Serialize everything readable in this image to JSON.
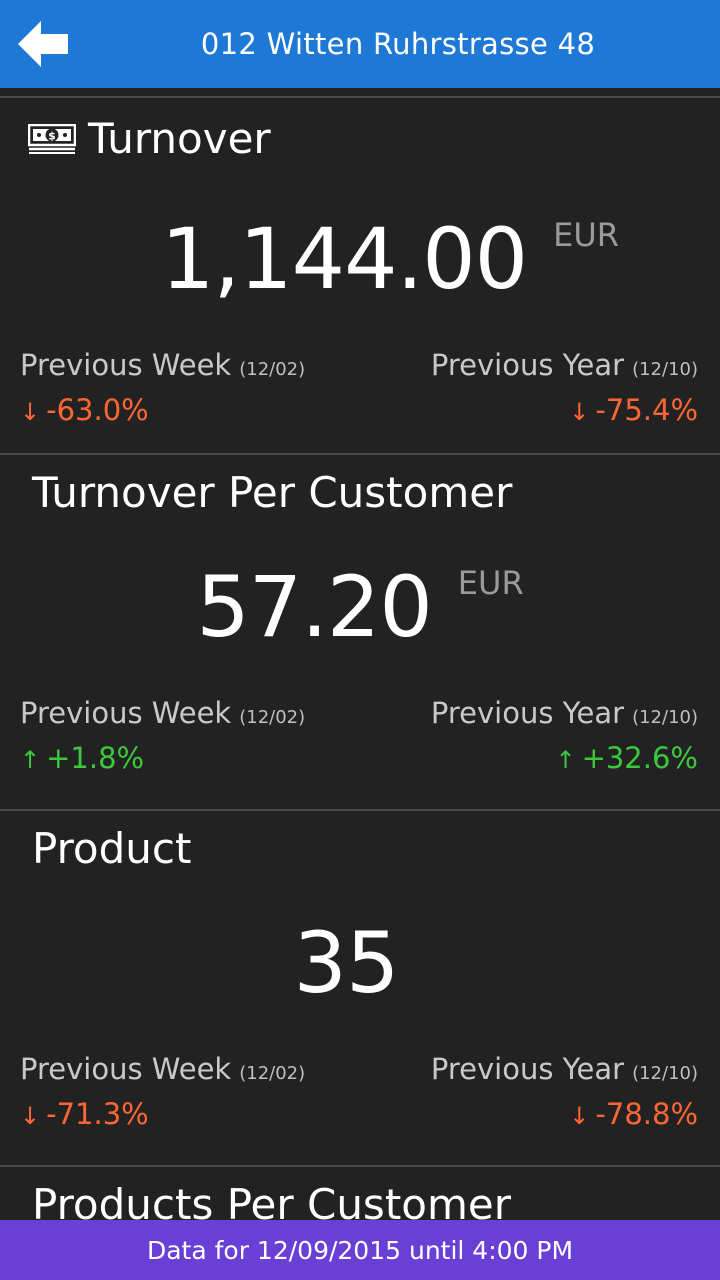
{
  "header": {
    "title": "012 Witten Ruhrstrasse 48",
    "back_icon": "arrow-left-icon"
  },
  "colors": {
    "header_bg": "#1e78d6",
    "footer_bg": "#6a3fd6",
    "negative": "#ff6633",
    "positive": "#3cc83c",
    "background": "#222222"
  },
  "cards": [
    {
      "title": "Turnover",
      "icon": "money-icon",
      "value": "1,144.00",
      "unit": "EUR",
      "prev_week_label": "Previous Week",
      "prev_week_date": "(12/02)",
      "prev_week_change": "-63.0%",
      "prev_week_direction": "down",
      "prev_year_label": "Previous Year",
      "prev_year_date": "(12/10)",
      "prev_year_change": "-75.4%",
      "prev_year_direction": "down"
    },
    {
      "title": "Turnover Per Customer",
      "value": "57.20",
      "unit": "EUR",
      "prev_week_label": "Previous Week",
      "prev_week_date": "(12/02)",
      "prev_week_change": "+1.8%",
      "prev_week_direction": "up",
      "prev_year_label": "Previous Year",
      "prev_year_date": "(12/10)",
      "prev_year_change": "+32.6%",
      "prev_year_direction": "up"
    },
    {
      "title": "Product",
      "value": "35",
      "unit": "",
      "prev_week_label": "Previous Week",
      "prev_week_date": "(12/02)",
      "prev_week_change": "-71.3%",
      "prev_week_direction": "down",
      "prev_year_label": "Previous Year",
      "prev_year_date": "(12/10)",
      "prev_year_change": "-78.8%",
      "prev_year_direction": "down"
    },
    {
      "title": "Products Per Customer"
    }
  ],
  "footer": {
    "text": "Data for 12/09/2015 until 4:00 PM"
  }
}
